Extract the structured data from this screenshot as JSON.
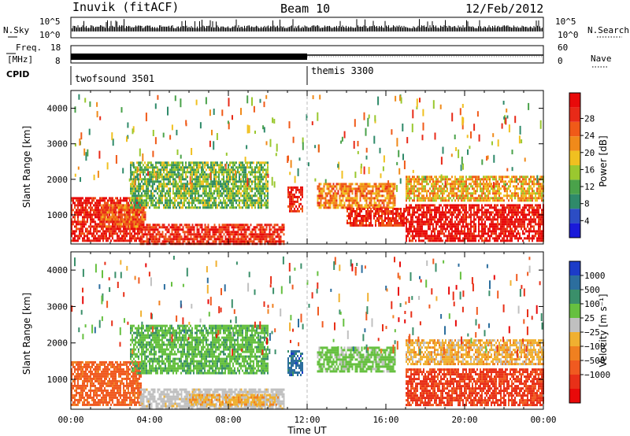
{
  "header": {
    "station": "Inuvik (fitACF)",
    "beam": "Beam 10",
    "date": "12/Feb/2012"
  },
  "left_labels": {
    "nsky": "N.Sky",
    "freq_top": "Freq.",
    "freq_unit": "[MHz]",
    "cpid": "CPID"
  },
  "right_labels": {
    "nsearch": "N.Search",
    "nave": "Nave"
  },
  "strip_ticks": {
    "nsky_left": [
      "10^5",
      "10^0"
    ],
    "nsky_right": [
      "10^5",
      "10^0"
    ],
    "freq_left": [
      "18",
      "8"
    ],
    "freq_right": [
      "60",
      "0"
    ]
  },
  "cpid_labels": [
    "twofsound 3501",
    "themis 3300"
  ],
  "axes": {
    "xlabel": "Time UT",
    "ylabel_range": "Slant Range [km]",
    "x_ticks": [
      "00:00",
      "04:00",
      "08:00",
      "12:00",
      "16:00",
      "20:00",
      "00:00"
    ],
    "y_ticks": [
      "1000",
      "2000",
      "3000",
      "4000"
    ]
  },
  "power_bar": {
    "title": "Power [dB]",
    "ticks": [
      "4",
      "8",
      "12",
      "16",
      "20",
      "24",
      "28"
    ],
    "colors": [
      "#1a1ad9",
      "#2c4dc4",
      "#2f8a6a",
      "#4aa24a",
      "#9ac82f",
      "#f0c020",
      "#f08a1a",
      "#f05a18",
      "#e82a18",
      "#e80a0a"
    ]
  },
  "velocity_bar": {
    "title": "Velocity [m s⁻¹]",
    "ticks": [
      "1000",
      "500",
      "100",
      "25",
      "−25",
      "−100",
      "−500",
      "−1000"
    ],
    "colors": [
      "#1c3cc8",
      "#2c6e9e",
      "#3a8f6a",
      "#66c040",
      "#c0c0c0",
      "#f0b030",
      "#f08020",
      "#f05a20",
      "#e83018",
      "#e80a0a"
    ]
  },
  "chart_data": [
    {
      "type": "heatmap",
      "title": "Power [dB]",
      "xlabel": "",
      "ylabel": "Slant Range [km]",
      "xlim": [
        0,
        24
      ],
      "ylim": [
        180,
        4500
      ],
      "legend": "right",
      "colorbar_range": [
        0,
        30
      ],
      "regions": [
        {
          "t0": 0,
          "t1": 3.6,
          "r0": 300,
          "r1": 1500,
          "value": 27
        },
        {
          "t0": 1.5,
          "t1": 3.8,
          "r0": 700,
          "r1": 1300,
          "value": 22
        },
        {
          "t0": 3.5,
          "t1": 10.8,
          "r0": 200,
          "r1": 750,
          "value": 26
        },
        {
          "t0": 11.0,
          "t1": 11.8,
          "r0": 1100,
          "r1": 1800,
          "value": 26
        },
        {
          "t0": 12.5,
          "t1": 16.5,
          "r0": 1200,
          "r1": 1900,
          "value": 20
        },
        {
          "t0": 14.0,
          "t1": 17.0,
          "r0": 700,
          "r1": 1200,
          "value": 26
        },
        {
          "t0": 17.0,
          "t1": 24.0,
          "r0": 300,
          "r1": 1300,
          "value": 28
        },
        {
          "t0": 17.0,
          "t1": 24.0,
          "r0": 1400,
          "r1": 2100,
          "value": 18
        },
        {
          "t0": 3.0,
          "t1": 10.0,
          "r0": 1200,
          "r1": 2500,
          "value": 12
        }
      ]
    },
    {
      "type": "heatmap",
      "title": "Velocity [m s⁻¹]",
      "xlabel": "Time UT",
      "ylabel": "Slant Range [km]",
      "xlim": [
        0,
        24
      ],
      "ylim": [
        180,
        4500
      ],
      "legend": "right",
      "regions": [
        {
          "t0": 0,
          "t1": 3.6,
          "r0": 300,
          "r1": 1500,
          "value": -150
        },
        {
          "t0": 3.5,
          "t1": 10.8,
          "r0": 200,
          "r1": 750,
          "value": 60
        },
        {
          "t0": 6.0,
          "t1": 10.5,
          "r0": 300,
          "r1": 600,
          "value": 0
        },
        {
          "t0": 11.0,
          "t1": 11.8,
          "r0": 1100,
          "r1": 1800,
          "value": 700
        },
        {
          "t0": 12.5,
          "t1": 16.5,
          "r0": 1200,
          "r1": 1900,
          "value": 150
        },
        {
          "t0": 17.0,
          "t1": 24.0,
          "r0": 300,
          "r1": 1300,
          "value": -300
        },
        {
          "t0": 17.0,
          "t1": 24.0,
          "r0": 1400,
          "r1": 2100,
          "value": 0
        },
        {
          "t0": 3.0,
          "t1": 10.0,
          "r0": 1200,
          "r1": 2500,
          "value": 200
        }
      ]
    }
  ]
}
